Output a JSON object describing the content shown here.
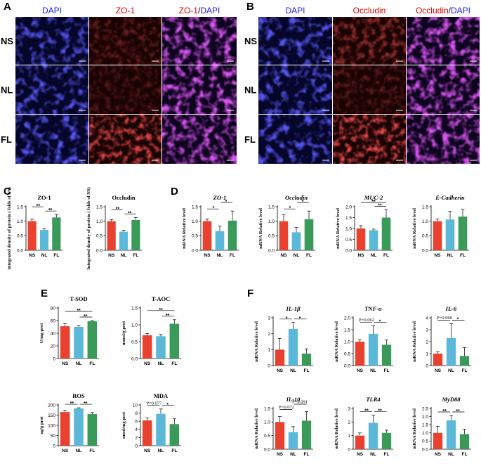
{
  "figure": {
    "panel_labels": [
      "A",
      "B",
      "C",
      "D",
      "E",
      "F"
    ],
    "if_panels": [
      {
        "label": "A",
        "headers": [
          {
            "parts": [
              {
                "t": "DAPI",
                "c": "#1a1aff"
              }
            ]
          },
          {
            "parts": [
              {
                "t": "ZO-1",
                "c": "#e00000"
              }
            ]
          },
          {
            "parts": [
              {
                "t": "ZO-1",
                "c": "#e00000"
              },
              {
                "t": "/",
                "c": "#000000"
              },
              {
                "t": "DAPI",
                "c": "#1a1aff"
              }
            ]
          }
        ],
        "rows": [
          "NS",
          "NL",
          "FL"
        ],
        "stains": [
          "dapi",
          "red",
          "merge"
        ],
        "red_intensity": [
          0.35,
          0.25,
          0.85
        ]
      },
      {
        "label": "B",
        "headers": [
          {
            "parts": [
              {
                "t": "DAPI",
                "c": "#1a1aff"
              }
            ]
          },
          {
            "parts": [
              {
                "t": "Occludin",
                "c": "#e00000"
              }
            ]
          },
          {
            "parts": [
              {
                "t": "Occludin",
                "c": "#e00000"
              },
              {
                "t": "/",
                "c": "#000000"
              },
              {
                "t": "DAPI",
                "c": "#1a1aff"
              }
            ]
          }
        ],
        "rows": [
          "NS",
          "NL",
          "FL"
        ],
        "stains": [
          "dapi",
          "red",
          "merge"
        ],
        "red_intensity": [
          0.55,
          0.3,
          0.9
        ]
      }
    ],
    "colors": {
      "NS": "#e8412f",
      "NL": "#5cb8d9",
      "FL": "#3a9a5a",
      "dapi": "#2a2ad0",
      "red": "#d01010"
    }
  },
  "chart_data": [
    {
      "panel": "C",
      "type": "bar",
      "title": "ZO-1",
      "ylabel": "Integrated density of protein ( folds of NS)",
      "categories": [
        "NS",
        "NL",
        "FL"
      ],
      "values": [
        1.0,
        0.7,
        1.13
      ],
      "errors": [
        0.07,
        0.05,
        0.1
      ],
      "ylim": [
        0,
        1.5
      ],
      "yticks": [
        "0.0",
        "0.5",
        "1.0",
        "1.5"
      ],
      "sig": [
        {
          "a": 0,
          "b": 1,
          "label": "**",
          "lvl": 1
        },
        {
          "a": 1,
          "b": 2,
          "label": "**",
          "lvl": 0
        }
      ]
    },
    {
      "panel": "C",
      "type": "bar",
      "title": "Occludin",
      "ylabel": "Integrated density of protein ( folds of NS)",
      "categories": [
        "NS",
        "NL",
        "FL"
      ],
      "values": [
        1.0,
        0.64,
        1.04
      ],
      "errors": [
        0.06,
        0.05,
        0.09
      ],
      "ylim": [
        0,
        1.5
      ],
      "yticks": [
        "0.0",
        "0.5",
        "1.0",
        "1.5"
      ],
      "sig": [
        {
          "a": 0,
          "b": 1,
          "label": "**",
          "lvl": 1
        },
        {
          "a": 1,
          "b": 2,
          "label": "**",
          "lvl": 0
        }
      ]
    },
    {
      "panel": "D",
      "type": "bar",
      "title": "ZO-1",
      "italic": true,
      "ylabel": "mRNA Relative level",
      "categories": [
        "NS",
        "NL",
        "FL"
      ],
      "values": [
        1.0,
        0.66,
        1.02
      ],
      "errors": [
        0.08,
        0.17,
        0.33
      ],
      "ylim": [
        0,
        1.5
      ],
      "yticks": [
        "0.0",
        "0.5",
        "1.0",
        "1.5"
      ],
      "sig": [
        {
          "a": 0,
          "b": 1,
          "label": "*",
          "lvl": 0
        },
        {
          "a": 1,
          "b": 2,
          "label": "*",
          "lvl": 1
        }
      ]
    },
    {
      "panel": "D",
      "type": "bar",
      "title": "Occludin",
      "italic": true,
      "ylabel": "mRNA Relative level",
      "categories": [
        "NS",
        "NL",
        "FL"
      ],
      "values": [
        1.0,
        0.62,
        1.07
      ],
      "errors": [
        0.22,
        0.17,
        0.28
      ],
      "ylim": [
        0,
        1.5
      ],
      "yticks": [
        "0.0",
        "0.5",
        "1.0",
        "1.5"
      ],
      "sig": [
        {
          "a": 0,
          "b": 1,
          "label": "*",
          "lvl": 0
        },
        {
          "a": 1,
          "b": 2,
          "label": "*",
          "lvl": 1
        }
      ]
    },
    {
      "panel": "D",
      "type": "bar",
      "title": "MUC-2",
      "italic": true,
      "ylabel": "mRNA Relative level",
      "categories": [
        "NS",
        "NL",
        "FL"
      ],
      "values": [
        1.0,
        0.92,
        1.5
      ],
      "errors": [
        0.13,
        0.05,
        0.35
      ],
      "ylim": [
        0,
        2.0
      ],
      "yticks": [
        "0.0",
        "0.5",
        "1.0",
        "1.5",
        "2.0"
      ],
      "sig": [
        {
          "a": 0,
          "b": 2,
          "label": "**",
          "lvl": 1
        },
        {
          "a": 1,
          "b": 2,
          "label": "**",
          "lvl": 0
        }
      ]
    },
    {
      "panel": "D",
      "type": "bar",
      "title": "E-Cadherin",
      "italic": true,
      "ylabel": "mRNA Relative level",
      "categories": [
        "NS",
        "NL",
        "FL"
      ],
      "values": [
        1.0,
        1.06,
        1.16
      ],
      "errors": [
        0.07,
        0.28,
        0.25
      ],
      "ylim": [
        0,
        1.5
      ],
      "yticks": [
        "0.0",
        "0.5",
        "1.0",
        "1.5"
      ],
      "sig": []
    },
    {
      "panel": "E",
      "type": "bar",
      "title": "T-SOD",
      "ylabel": "U/mg prot",
      "categories": [
        "NS",
        "NL",
        "FL"
      ],
      "values": [
        51,
        50,
        59
      ],
      "errors": [
        4,
        2,
        1
      ],
      "ylim": [
        0,
        80
      ],
      "yticks": [
        "0",
        "20",
        "40",
        "60",
        "80"
      ],
      "sig": [
        {
          "a": 0,
          "b": 2,
          "label": "**",
          "lvl": 1
        },
        {
          "a": 1,
          "b": 2,
          "label": "**",
          "lvl": 0
        }
      ]
    },
    {
      "panel": "E",
      "type": "bar",
      "title": "T-AOC",
      "ylabel": "mmol/g prot",
      "categories": [
        "NS",
        "NL",
        "FL"
      ],
      "values": [
        0.69,
        0.66,
        1.03
      ],
      "errors": [
        0.05,
        0.05,
        0.12
      ],
      "ylim": [
        0,
        1.5
      ],
      "yticks": [
        "0.0",
        "0.5",
        "1.0",
        "1.5"
      ],
      "sig": [
        {
          "a": 0,
          "b": 2,
          "label": "**",
          "lvl": 1
        },
        {
          "a": 1,
          "b": 2,
          "label": "**",
          "lvl": 0
        }
      ]
    },
    {
      "panel": "E",
      "type": "bar",
      "title": "ROS",
      "ylabel": "ug/g prot",
      "categories": [
        "NS",
        "NL",
        "FL"
      ],
      "values": [
        165,
        183,
        155
      ],
      "errors": [
        8,
        3,
        8
      ],
      "ylim": [
        0,
        200
      ],
      "yticks": [
        "0",
        "50",
        "100",
        "150",
        "200"
      ],
      "sig": [
        {
          "a": 0,
          "b": 1,
          "label": "**",
          "lvl": 0
        },
        {
          "a": 1,
          "b": 2,
          "label": "**",
          "lvl": 0
        }
      ]
    },
    {
      "panel": "E",
      "type": "bar",
      "title": "MDA",
      "ylabel": "nmol/mg prot",
      "categories": [
        "NS",
        "NL",
        "FL"
      ],
      "values": [
        6.2,
        7.8,
        5.3
      ],
      "errors": [
        0.6,
        1.2,
        1.3
      ],
      "ylim": [
        0,
        10
      ],
      "yticks": [
        "0",
        "2",
        "4",
        "6",
        "8",
        "10"
      ],
      "sig": [
        {
          "a": 0,
          "b": 1,
          "label": "P=0.077",
          "lvl": 0
        },
        {
          "a": 1,
          "b": 2,
          "label": "*",
          "lvl": 0
        }
      ]
    },
    {
      "panel": "F",
      "type": "bar",
      "title": "IL-1β",
      "italic": true,
      "ylabel": "mRNA Relative level",
      "categories": [
        "NS",
        "NL",
        "FL"
      ],
      "values": [
        1.0,
        2.3,
        0.75
      ],
      "errors": [
        0.7,
        0.4,
        0.3
      ],
      "ylim": [
        0,
        3
      ],
      "yticks": [
        "0",
        "1",
        "2",
        "3"
      ],
      "sig": [
        {
          "a": 0,
          "b": 1,
          "label": "*",
          "lvl": 0
        },
        {
          "a": 1,
          "b": 2,
          "label": "*",
          "lvl": 0
        }
      ]
    },
    {
      "panel": "F",
      "type": "bar",
      "title": "TNF-α",
      "italic": true,
      "ylabel": "mRNA Relative level",
      "categories": [
        "NS",
        "NL",
        "FL"
      ],
      "values": [
        1.0,
        1.33,
        0.87
      ],
      "errors": [
        0.08,
        0.33,
        0.2
      ],
      "ylim": [
        0,
        2.0
      ],
      "yticks": [
        "0.0",
        "0.5",
        "1.0",
        "1.5",
        "2.0"
      ],
      "sig": [
        {
          "a": 0,
          "b": 1,
          "label": "P=0.062",
          "lvl": 0
        },
        {
          "a": 1,
          "b": 2,
          "label": "*",
          "lvl": 0
        }
      ]
    },
    {
      "panel": "F",
      "type": "bar",
      "title": "IL-6",
      "italic": true,
      "ylabel": "mRNA Relative level",
      "categories": [
        "NS",
        "NL",
        "FL"
      ],
      "values": [
        1.0,
        2.3,
        0.8
      ],
      "errors": [
        0.15,
        1.2,
        0.7
      ],
      "ylim": [
        0,
        4
      ],
      "yticks": [
        "0",
        "1",
        "2",
        "3",
        "4"
      ],
      "sig": [
        {
          "a": 0,
          "b": 1,
          "label": "P=0.060",
          "lvl": 0
        },
        {
          "a": 1,
          "b": 2,
          "label": "*",
          "lvl": 0
        }
      ]
    },
    {
      "panel": "F",
      "type": "bar",
      "title": "IL-10",
      "italic": true,
      "ylabel": "mRNA Relative level",
      "categories": [
        "NS",
        "NL",
        "FL"
      ],
      "values": [
        1.0,
        0.63,
        1.05
      ],
      "errors": [
        0.2,
        0.2,
        0.33
      ],
      "ylim": [
        0,
        1.5
      ],
      "yticks": [
        "0.0",
        "0.5",
        "1.0",
        "1.5"
      ],
      "sig": [
        {
          "a": 0,
          "b": 1,
          "label": "P=0.072",
          "lvl": 0
        },
        {
          "a": 1,
          "b": 2,
          "label": "P=0.091",
          "lvl": 1
        }
      ]
    },
    {
      "panel": "F",
      "type": "bar",
      "title": "TLR4",
      "italic": true,
      "ylabel": "mRNA Relative level",
      "categories": [
        "NS",
        "NL",
        "FL"
      ],
      "values": [
        1.0,
        1.95,
        1.2
      ],
      "errors": [
        0.2,
        0.55,
        0.2
      ],
      "ylim": [
        0,
        3
      ],
      "yticks": [
        "0",
        "1",
        "2",
        "3"
      ],
      "sig": [
        {
          "a": 0,
          "b": 1,
          "label": "**",
          "lvl": 0
        },
        {
          "a": 1,
          "b": 2,
          "label": "**",
          "lvl": 0
        }
      ]
    },
    {
      "panel": "F",
      "type": "bar",
      "title": "MyD88",
      "italic": true,
      "ylabel": "mRNA Relative level",
      "categories": [
        "NS",
        "NL",
        "FL"
      ],
      "values": [
        1.0,
        1.77,
        0.93
      ],
      "errors": [
        0.4,
        0.3,
        0.3
      ],
      "ylim": [
        0,
        2.5
      ],
      "yticks": [
        "0.0",
        "0.5",
        "1.0",
        "1.5",
        "2.0",
        "2.5"
      ],
      "sig": [
        {
          "a": 0,
          "b": 1,
          "label": "**",
          "lvl": 0
        },
        {
          "a": 1,
          "b": 2,
          "label": "**",
          "lvl": 0
        }
      ]
    }
  ]
}
